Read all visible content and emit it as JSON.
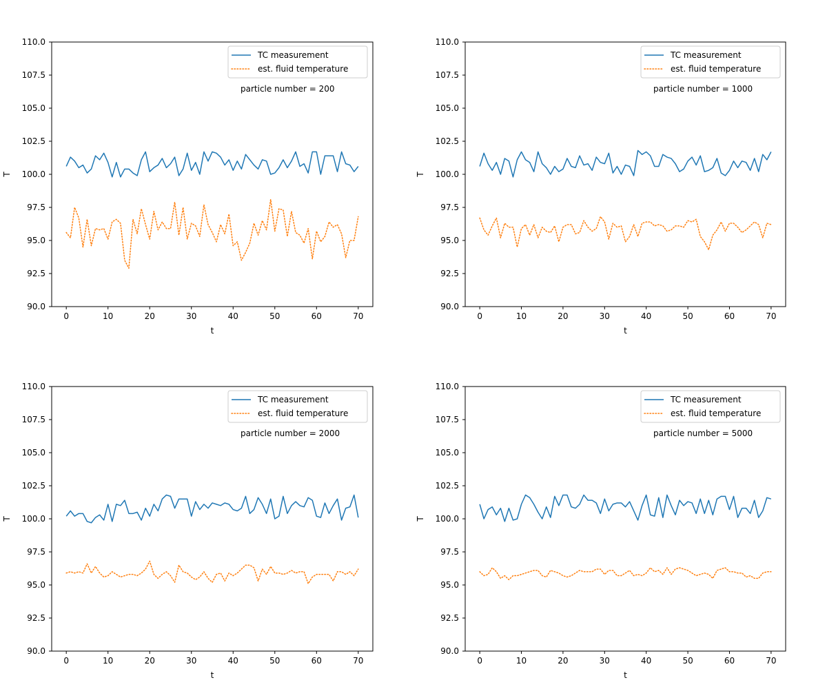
{
  "figure": {
    "panel_label_prefix": "particle number = "
  },
  "colors": {
    "tc": "#1f77b4",
    "fluid": "#ff7f0e",
    "axes": "#000000",
    "legend_border": "#cccccc"
  },
  "chart_data": [
    {
      "type": "line",
      "annotation": "particle number = 200",
      "xlabel": "t",
      "ylabel": "T",
      "xlim": [
        -3.5,
        73.5
      ],
      "ylim": [
        90.0,
        110.0
      ],
      "xticks": [
        0,
        10,
        20,
        30,
        40,
        50,
        60,
        70
      ],
      "xtick_labels": [
        "0",
        "10",
        "20",
        "30",
        "40",
        "50",
        "60",
        "70"
      ],
      "yticks": [
        90.0,
        92.5,
        95.0,
        97.5,
        100.0,
        102.5,
        105.0,
        107.5,
        110.0
      ],
      "ytick_labels": [
        "90.0",
        "92.5",
        "95.0",
        "97.5",
        "100.0",
        "102.5",
        "105.0",
        "107.5",
        "110.0"
      ],
      "legend": {
        "placement": "upper-right",
        "entries": [
          "TC measurement",
          "est. fluid temperature"
        ]
      },
      "series": [
        {
          "name": "TC measurement",
          "style": "solid",
          "values": [
            100.6,
            101.3,
            101.0,
            100.5,
            100.7,
            100.1,
            100.4,
            101.4,
            101.1,
            101.6,
            100.9,
            99.8,
            100.9,
            99.8,
            100.4,
            100.4,
            100.1,
            99.9,
            101.1,
            101.7,
            100.2,
            100.5,
            100.7,
            101.2,
            100.5,
            100.8,
            101.3,
            99.9,
            100.4,
            101.6,
            100.3,
            100.9,
            100.0,
            101.7,
            101.0,
            101.7,
            101.6,
            101.3,
            100.7,
            101.1,
            100.3,
            101.0,
            100.4,
            101.5,
            101.1,
            100.7,
            100.4,
            101.1,
            101.0,
            100.0,
            100.1,
            100.5,
            101.1,
            100.5,
            101.0,
            101.7,
            100.6,
            100.8,
            100.1,
            101.7,
            101.7,
            100.0,
            101.4,
            101.4,
            101.4,
            100.2,
            101.7,
            100.8,
            100.7,
            100.2,
            100.6
          ]
        },
        {
          "name": "est. fluid temperature",
          "style": "dotted",
          "values": [
            95.6,
            95.2,
            97.5,
            96.7,
            94.5,
            96.6,
            94.6,
            95.9,
            95.8,
            95.9,
            95.1,
            96.4,
            96.6,
            96.3,
            93.5,
            92.9,
            96.6,
            95.5,
            97.4,
            96.2,
            95.1,
            97.2,
            95.8,
            96.4,
            95.9,
            95.9,
            97.9,
            95.4,
            97.5,
            95.1,
            96.3,
            96.1,
            95.3,
            97.7,
            96.2,
            95.6,
            94.9,
            96.2,
            95.5,
            97.0,
            94.6,
            94.9,
            93.5,
            94.1,
            94.8,
            96.3,
            95.4,
            96.5,
            95.8,
            98.1,
            95.7,
            97.4,
            97.3,
            95.3,
            97.2,
            95.6,
            95.4,
            94.8,
            95.9,
            93.6,
            95.7,
            94.9,
            95.3,
            96.4,
            96.0,
            96.2,
            95.5,
            93.7,
            95.0,
            95.0,
            96.8
          ]
        }
      ]
    },
    {
      "type": "line",
      "annotation": "particle number = 1000",
      "xlabel": "t",
      "ylabel": "T",
      "xlim": [
        -3.5,
        73.5
      ],
      "ylim": [
        90.0,
        110.0
      ],
      "xticks": [
        0,
        10,
        20,
        30,
        40,
        50,
        60,
        70
      ],
      "xtick_labels": [
        "0",
        "10",
        "20",
        "30",
        "40",
        "50",
        "60",
        "70"
      ],
      "yticks": [
        90.0,
        92.5,
        95.0,
        97.5,
        100.0,
        102.5,
        105.0,
        107.5,
        110.0
      ],
      "ytick_labels": [
        "90.0",
        "92.5",
        "95.0",
        "97.5",
        "100.0",
        "102.5",
        "105.0",
        "107.5",
        "110.0"
      ],
      "legend": {
        "placement": "upper-right",
        "entries": [
          "TC measurement",
          "est. fluid temperature"
        ]
      },
      "series": [
        {
          "name": "TC measurement",
          "style": "solid",
          "values": [
            100.6,
            101.6,
            100.8,
            100.3,
            100.9,
            100.0,
            101.2,
            101.0,
            99.8,
            101.1,
            101.7,
            101.1,
            100.9,
            100.2,
            101.7,
            100.8,
            100.5,
            100.0,
            100.6,
            100.2,
            100.4,
            101.2,
            100.6,
            100.5,
            101.4,
            100.7,
            100.8,
            100.3,
            101.3,
            100.9,
            100.8,
            101.6,
            100.1,
            100.6,
            100.0,
            100.7,
            100.6,
            99.9,
            101.8,
            101.5,
            101.7,
            101.4,
            100.6,
            100.6,
            101.5,
            101.3,
            101.2,
            100.8,
            100.2,
            100.4,
            101.0,
            101.3,
            100.7,
            101.4,
            100.2,
            100.3,
            100.5,
            101.2,
            100.1,
            99.9,
            100.3,
            101.0,
            100.5,
            101.0,
            100.9,
            100.3,
            101.2,
            100.2,
            101.5,
            101.1,
            101.7
          ]
        },
        {
          "name": "est. fluid temperature",
          "style": "dotted",
          "values": [
            96.7,
            95.8,
            95.4,
            96.1,
            96.7,
            95.2,
            96.3,
            96.0,
            96.0,
            94.5,
            95.9,
            96.2,
            95.4,
            96.2,
            95.2,
            96.0,
            95.7,
            95.6,
            96.1,
            94.9,
            96.0,
            96.2,
            96.2,
            95.5,
            95.6,
            96.5,
            96.0,
            95.7,
            95.9,
            96.8,
            96.4,
            95.1,
            96.3,
            96.0,
            96.1,
            94.9,
            95.3,
            96.2,
            95.3,
            96.3,
            96.4,
            96.4,
            96.1,
            96.2,
            96.1,
            95.7,
            95.8,
            96.1,
            96.1,
            96.0,
            96.5,
            96.4,
            96.6,
            95.3,
            94.9,
            94.3,
            95.4,
            95.8,
            96.4,
            95.7,
            96.3,
            96.3,
            96.0,
            95.6,
            95.8,
            96.1,
            96.4,
            96.2,
            95.2,
            96.3,
            96.2
          ]
        }
      ]
    },
    {
      "type": "line",
      "annotation": "particle number = 2000",
      "xlabel": "t",
      "ylabel": "T",
      "xlim": [
        -3.5,
        73.5
      ],
      "ylim": [
        90.0,
        110.0
      ],
      "xticks": [
        0,
        10,
        20,
        30,
        40,
        50,
        60,
        70
      ],
      "xtick_labels": [
        "0",
        "10",
        "20",
        "30",
        "40",
        "50",
        "60",
        "70"
      ],
      "yticks": [
        90.0,
        92.5,
        95.0,
        97.5,
        100.0,
        102.5,
        105.0,
        107.5,
        110.0
      ],
      "ytick_labels": [
        "90.0",
        "92.5",
        "95.0",
        "97.5",
        "100.0",
        "102.5",
        "105.0",
        "107.5",
        "110.0"
      ],
      "legend": {
        "placement": "upper-right",
        "entries": [
          "TC measurement",
          "est. fluid temperature"
        ]
      },
      "series": [
        {
          "name": "TC measurement",
          "style": "solid",
          "values": [
            100.2,
            100.6,
            100.2,
            100.4,
            100.4,
            99.8,
            99.7,
            100.1,
            100.3,
            99.9,
            101.1,
            99.8,
            101.1,
            101.0,
            101.4,
            100.4,
            100.4,
            100.5,
            99.9,
            100.8,
            100.2,
            101.1,
            100.6,
            101.5,
            101.8,
            101.7,
            100.8,
            101.5,
            101.5,
            101.5,
            100.2,
            101.3,
            100.7,
            101.1,
            100.8,
            101.2,
            101.1,
            101.0,
            101.2,
            101.1,
            100.7,
            100.6,
            100.8,
            101.7,
            100.4,
            100.7,
            101.6,
            101.1,
            100.4,
            101.5,
            100.0,
            100.2,
            101.7,
            100.4,
            101.0,
            101.3,
            101.0,
            100.9,
            101.6,
            101.4,
            100.2,
            100.1,
            101.2,
            100.4,
            101.0,
            101.5,
            99.9,
            100.8,
            100.9,
            101.8,
            100.1
          ]
        },
        {
          "name": "est. fluid temperature",
          "style": "dotted",
          "values": [
            95.9,
            96.0,
            95.9,
            96.0,
            95.9,
            96.6,
            95.9,
            96.4,
            95.9,
            95.6,
            95.7,
            96.0,
            95.8,
            95.6,
            95.7,
            95.8,
            95.8,
            95.7,
            95.9,
            96.2,
            96.8,
            95.8,
            95.5,
            95.8,
            96.0,
            95.7,
            95.2,
            96.5,
            96.0,
            95.9,
            95.6,
            95.4,
            95.6,
            96.0,
            95.5,
            95.2,
            95.8,
            95.9,
            95.3,
            95.9,
            95.7,
            95.9,
            96.2,
            96.5,
            96.5,
            96.3,
            95.3,
            96.2,
            95.8,
            96.4,
            95.9,
            95.9,
            95.8,
            95.9,
            96.1,
            95.9,
            96.0,
            96.0,
            95.1,
            95.6,
            95.8,
            95.8,
            95.8,
            95.8,
            95.3,
            96.0,
            96.0,
            95.8,
            96.0,
            95.7,
            96.2
          ]
        }
      ]
    },
    {
      "type": "line",
      "annotation": "particle number = 5000",
      "xlabel": "t",
      "ylabel": "T",
      "xlim": [
        -3.5,
        73.5
      ],
      "ylim": [
        90.0,
        110.0
      ],
      "xticks": [
        0,
        10,
        20,
        30,
        40,
        50,
        60,
        70
      ],
      "xtick_labels": [
        "0",
        "10",
        "20",
        "30",
        "40",
        "50",
        "60",
        "70"
      ],
      "yticks": [
        90.0,
        92.5,
        95.0,
        97.5,
        100.0,
        102.5,
        105.0,
        107.5,
        110.0
      ],
      "ytick_labels": [
        "90.0",
        "92.5",
        "95.0",
        "97.5",
        "100.0",
        "102.5",
        "105.0",
        "107.5",
        "110.0"
      ],
      "legend": {
        "placement": "upper-right",
        "entries": [
          "TC measurement",
          "est. fluid temperature"
        ]
      },
      "series": [
        {
          "name": "TC measurement",
          "style": "solid",
          "values": [
            101.1,
            100.0,
            100.7,
            100.9,
            100.3,
            100.8,
            99.8,
            100.8,
            99.9,
            100.0,
            101.1,
            101.8,
            101.6,
            101.1,
            100.5,
            100.0,
            100.9,
            100.1,
            101.7,
            101.0,
            101.8,
            101.8,
            100.9,
            100.8,
            101.1,
            101.8,
            101.4,
            101.4,
            101.2,
            100.4,
            101.5,
            100.6,
            101.1,
            101.2,
            101.2,
            100.9,
            101.3,
            100.6,
            99.9,
            101.0,
            101.8,
            100.3,
            100.2,
            101.6,
            100.1,
            101.8,
            101.0,
            100.3,
            101.4,
            101.0,
            101.3,
            101.2,
            100.4,
            101.5,
            100.4,
            101.4,
            100.3,
            101.5,
            101.7,
            101.7,
            100.7,
            101.7,
            100.1,
            100.8,
            100.8,
            100.4,
            101.4,
            100.1,
            100.6,
            101.6,
            101.5
          ]
        },
        {
          "name": "est. fluid temperature",
          "style": "dotted",
          "values": [
            96.0,
            95.7,
            95.8,
            96.3,
            96.0,
            95.5,
            95.7,
            95.4,
            95.7,
            95.7,
            95.8,
            95.9,
            96.0,
            96.1,
            96.1,
            95.7,
            95.6,
            96.1,
            96.0,
            95.9,
            95.7,
            95.6,
            95.7,
            95.9,
            96.1,
            96.0,
            96.0,
            96.0,
            96.2,
            96.2,
            95.8,
            96.1,
            96.1,
            95.7,
            95.7,
            95.9,
            96.1,
            95.7,
            95.8,
            95.7,
            95.9,
            96.3,
            96.0,
            96.1,
            95.8,
            96.3,
            95.8,
            96.2,
            96.3,
            96.2,
            96.1,
            95.9,
            95.7,
            95.8,
            95.9,
            95.8,
            95.5,
            96.1,
            96.2,
            96.3,
            96.0,
            96.0,
            95.9,
            95.9,
            95.6,
            95.7,
            95.5,
            95.5,
            95.9,
            96.0,
            96.0
          ]
        }
      ]
    }
  ]
}
